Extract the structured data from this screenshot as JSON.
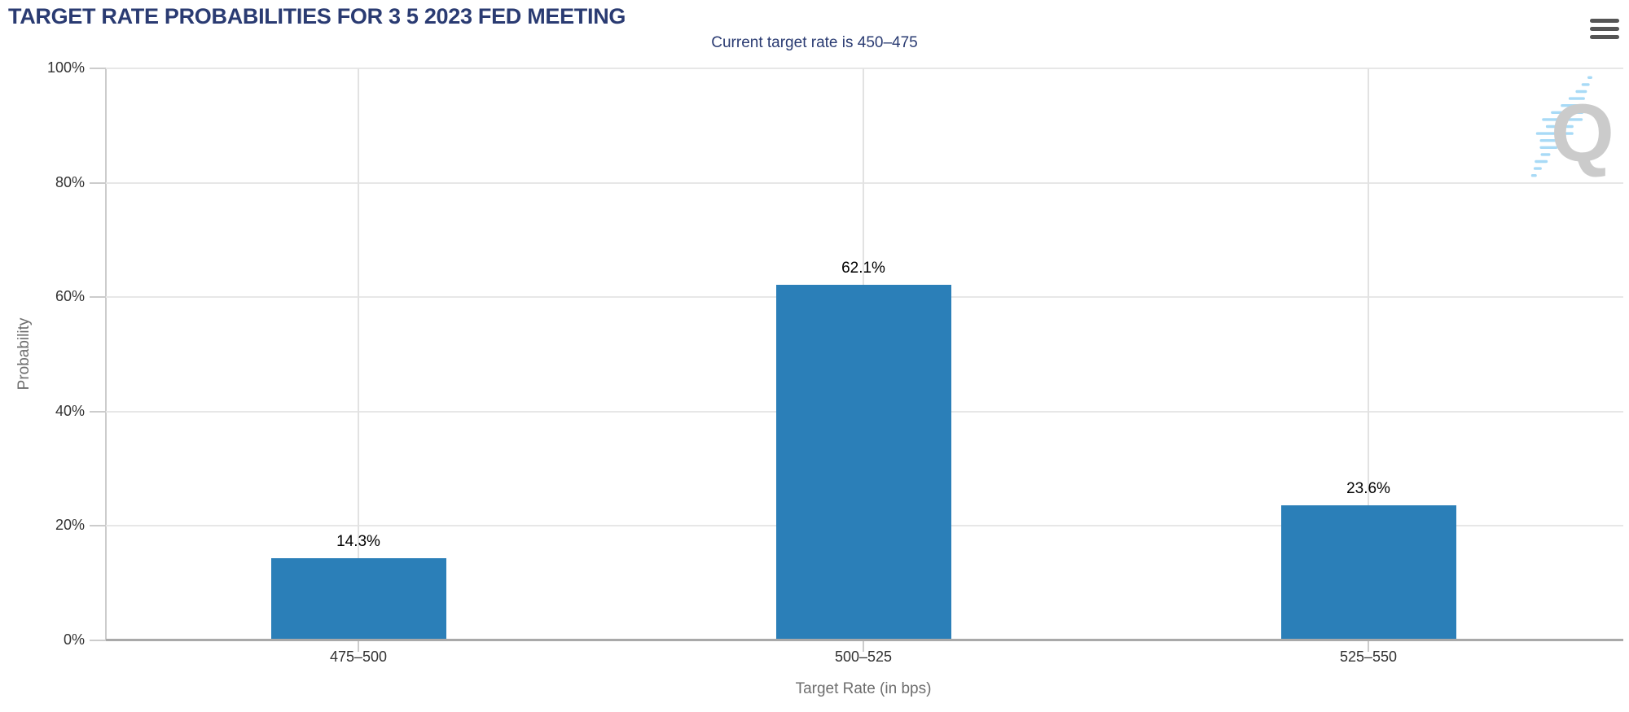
{
  "chart_data": {
    "type": "bar",
    "title": "TARGET RATE PROBABILITIES FOR 3 5 2023 FED MEETING",
    "subtitle": "Current target rate is 450–475",
    "categories": [
      "475–500",
      "500–525",
      "525–550"
    ],
    "values": [
      14.3,
      62.1,
      23.6
    ],
    "value_labels": [
      "14.3%",
      "62.1%",
      "23.6%"
    ],
    "xlabel": "Target Rate (in bps)",
    "ylabel": "Probability",
    "ylim": [
      0,
      100
    ],
    "yticks": [
      0,
      20,
      40,
      60,
      80,
      100
    ],
    "ytick_labels": [
      "0%",
      "20%",
      "40%",
      "60%",
      "80%",
      "100%"
    ],
    "grid": true,
    "legend": "none",
    "bar_color": "#2b7fb8"
  },
  "watermark": {
    "letter": "Q"
  },
  "icons": {
    "menu": "hamburger-menu-icon"
  },
  "colors": {
    "title": "#2a3b72",
    "subtitle": "#2a3b72",
    "bar": "#2b7fb8",
    "value_label": "#000000",
    "tick_label": "#333333",
    "axis_title": "#6e6e6e",
    "gridline": "#e7e7e7",
    "gridline_v": "#e2e2e2",
    "axis_line": "#a9a9a9",
    "axis_line_light": "#cccccc",
    "menu_icon": "#555555",
    "watermark_q": "#cbcbcb",
    "watermark_dash": "#a8daf6"
  }
}
